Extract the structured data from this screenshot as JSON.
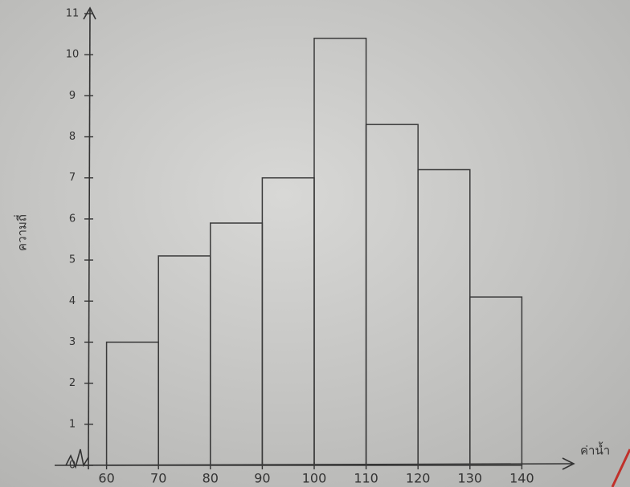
{
  "chart_data": {
    "type": "histogram",
    "x_label": "ค่าน้ำ",
    "y_label": "ความถี่",
    "bins": [
      60,
      70,
      80,
      90,
      100,
      110,
      120,
      130,
      140
    ],
    "values": [
      3,
      5.1,
      5.9,
      7,
      10.4,
      8.3,
      7.2,
      4.1
    ],
    "color": "#3a3a3a",
    "xlim": [
      50,
      150
    ],
    "xticks": [
      60,
      70,
      80,
      90,
      100,
      110,
      120,
      130,
      140
    ],
    "ylim": [
      0,
      11
    ],
    "yticks": [
      0,
      1,
      2,
      3,
      4,
      5,
      6,
      7,
      8,
      9,
      10,
      11
    ]
  }
}
